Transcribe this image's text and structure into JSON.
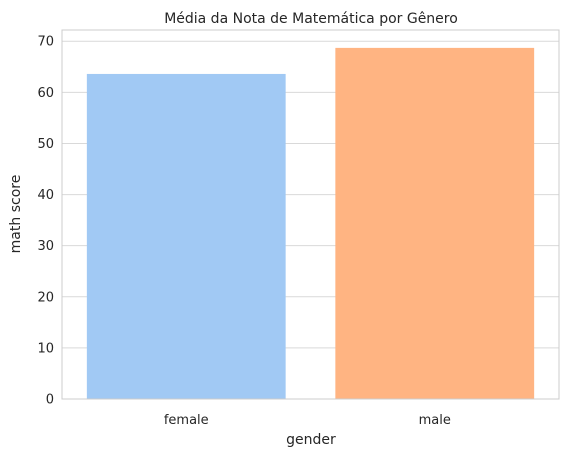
{
  "chart_data": {
    "type": "bar",
    "title": "Média da Nota de Matemática por Gênero",
    "xlabel": "gender",
    "ylabel": "math score",
    "categories": [
      "female",
      "male"
    ],
    "values": [
      63.6,
      68.7
    ],
    "ylim": [
      0,
      72.2
    ],
    "yticks": [
      0,
      10,
      20,
      30,
      40,
      50,
      60,
      70
    ],
    "colors": [
      "#a1c9f4",
      "#ffb482"
    ],
    "grid": true
  }
}
